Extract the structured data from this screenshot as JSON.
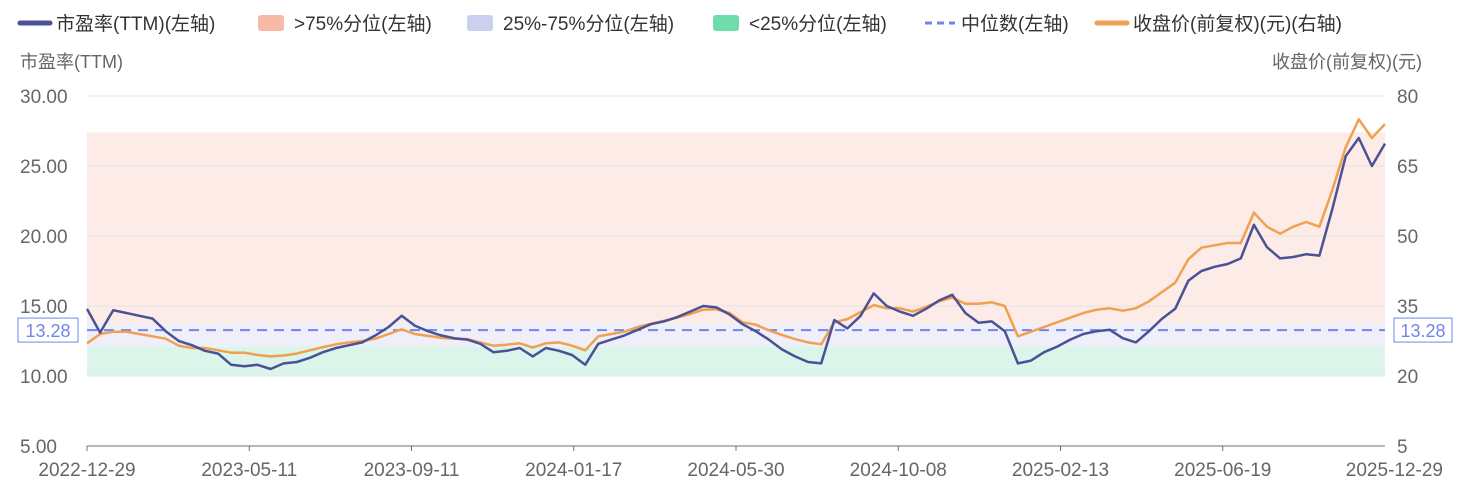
{
  "chart_data": {
    "type": "line",
    "legend_position": "top",
    "grid": true,
    "legend": [
      {
        "key": "pe",
        "label": "市盈率(TTM)(左轴)",
        "color": "#4a5296",
        "style": "line"
      },
      {
        "key": "high",
        "label": ">75%分位(左轴)",
        "color": "#f8b9a9",
        "style": "box"
      },
      {
        "key": "mid",
        "label": "25%-75%分位(左轴)",
        "color": "#cccff0",
        "style": "box"
      },
      {
        "key": "low",
        "label": "<25%分位(左轴)",
        "color": "#6fdcab",
        "style": "box"
      },
      {
        "key": "median",
        "label": "中位数(左轴)",
        "color": "#7186e8",
        "style": "dash"
      },
      {
        "key": "price",
        "label": "收盘价(前复权)(元)(右轴)",
        "color": "#f0a050",
        "style": "line"
      }
    ],
    "y_left": {
      "label": "市盈率(TTM)",
      "min": 5,
      "max": 30,
      "ticks": [
        "30.00",
        "25.00",
        "20.00",
        "15.00",
        "10.00",
        "5.00"
      ]
    },
    "y_right": {
      "label": "收盘价(前复权)(元)",
      "min": 5,
      "max": 80,
      "ticks": [
        "80",
        "65",
        "50",
        "35",
        "20",
        "5"
      ]
    },
    "x_ticks": [
      "2022-12-29",
      "2023-05-11",
      "2023-09-11",
      "2024-01-17",
      "2024-05-30",
      "2024-10-08",
      "2025-02-13",
      "2025-06-19",
      "2025-12-29"
    ],
    "bands": {
      "high": [
        13.8,
        27.4
      ],
      "mid": [
        12.1,
        13.8
      ],
      "low": [
        10.0,
        12.1
      ]
    },
    "median": {
      "value": 13.28,
      "label": "13.28",
      "right_label": "13.28"
    },
    "series": [
      {
        "name": "市盈率(TTM)(左轴)",
        "values": [
          14.8,
          13.1,
          14.7,
          14.5,
          14.3,
          14.1,
          13.2,
          12.5,
          12.2,
          11.8,
          11.6,
          10.8,
          10.7,
          10.8,
          10.5,
          10.9,
          11.0,
          11.3,
          11.7,
          12.0,
          12.2,
          12.4,
          12.9,
          13.5,
          14.3,
          13.6,
          13.2,
          12.9,
          12.7,
          12.6,
          12.3,
          11.7,
          11.8,
          12.0,
          11.4,
          12.0,
          11.8,
          11.5,
          10.8,
          12.3,
          12.6,
          12.9,
          13.3,
          13.7,
          13.9,
          14.2,
          14.6,
          15.0,
          14.9,
          14.4,
          13.7,
          13.2,
          12.6,
          11.9,
          11.4,
          11.0,
          10.9,
          14.0,
          13.4,
          14.3,
          15.9,
          15.0,
          14.6,
          14.3,
          14.8,
          15.4,
          15.8,
          14.5,
          13.8,
          13.9,
          13.2,
          10.9,
          11.1,
          11.7,
          12.1,
          12.6,
          13.0,
          13.2,
          13.3,
          12.7,
          12.4,
          13.2,
          14.1,
          14.8,
          16.8,
          17.5,
          17.8,
          18.0,
          18.4,
          20.8,
          19.2,
          18.4,
          18.5,
          18.7,
          18.6,
          22.0,
          25.7,
          27.0,
          25.0,
          26.6
        ]
      },
      {
        "name": "收盘价(前复权)(元)(右轴)",
        "values": [
          27,
          29,
          29.5,
          29.5,
          29,
          28.5,
          28,
          26.5,
          26,
          26,
          25.5,
          25,
          25,
          24.5,
          24.2,
          24.4,
          24.8,
          25.5,
          26.2,
          26.8,
          27.2,
          27.5,
          28,
          29,
          30,
          29,
          28.6,
          28.2,
          28,
          27.9,
          27.2,
          26.5,
          26.7,
          27,
          26.1,
          27,
          27.2,
          26.5,
          25.5,
          28.5,
          29,
          29.5,
          30.5,
          31.2,
          31.8,
          32.5,
          33.3,
          34.2,
          34.3,
          33.5,
          31.5,
          31,
          29.8,
          28.8,
          27.9,
          27.2,
          26.8,
          31.5,
          32.2,
          33.7,
          35.2,
          34.5,
          34.5,
          33.8,
          34.8,
          36,
          36.8,
          35.5,
          35.5,
          35.8,
          35,
          28.5,
          29.5,
          30.5,
          31.5,
          32.5,
          33.5,
          34.2,
          34.5,
          34,
          34.5,
          36,
          38,
          40,
          45,
          47.5,
          48,
          48.5,
          48.5,
          55,
          52,
          50.5,
          52,
          53,
          52,
          60,
          69,
          75,
          71,
          74
        ]
      }
    ]
  }
}
